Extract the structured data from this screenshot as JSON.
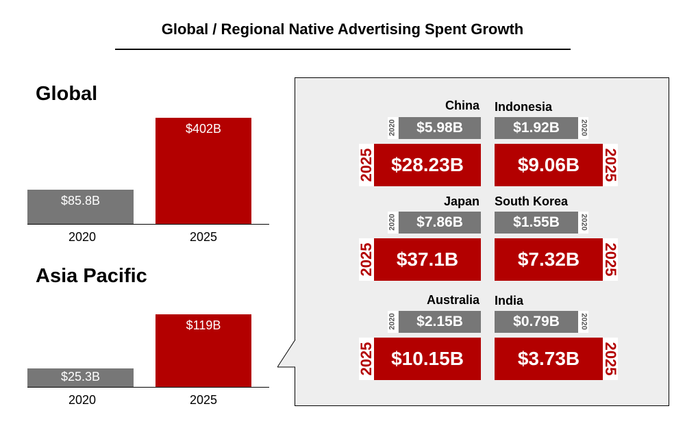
{
  "title": "Global / Regional Native Advertising Spent Growth",
  "colors": {
    "bar_2020": "#777777",
    "bar_2025": "#b30000",
    "panel_bg": "#eeeeee"
  },
  "chart_data": [
    {
      "type": "bar",
      "title": "Global",
      "categories": [
        "2020",
        "2025"
      ],
      "values": [
        85.8,
        402
      ],
      "value_labels": [
        "$85.8B",
        "$402B"
      ],
      "unit": "$B",
      "grid": false
    },
    {
      "type": "bar",
      "title": "Asia Pacific",
      "categories": [
        "2020",
        "2025"
      ],
      "values": [
        25.3,
        119
      ],
      "value_labels": [
        "$25.3B",
        "$119B"
      ],
      "unit": "$B",
      "grid": false
    },
    {
      "type": "table",
      "title": "Asia Pacific countries",
      "year_labels": {
        "from": "2020",
        "to": "2025"
      },
      "countries": [
        {
          "name": "China",
          "v2020": 5.98,
          "v2025": 28.23,
          "label2020": "$5.98B",
          "label2025": "$28.23B"
        },
        {
          "name": "Indonesia",
          "v2020": 1.92,
          "v2025": 9.06,
          "label2020": "$1.92B",
          "label2025": "$9.06B"
        },
        {
          "name": "Japan",
          "v2020": 7.86,
          "v2025": 37.1,
          "label2020": "$7.86B",
          "label2025": "$37.1B"
        },
        {
          "name": "South Korea",
          "v2020": 1.55,
          "v2025": 7.32,
          "label2020": "$1.55B",
          "label2025": "$7.32B"
        },
        {
          "name": "Australia",
          "v2020": 2.15,
          "v2025": 10.15,
          "label2020": "$2.15B",
          "label2025": "$10.15B"
        },
        {
          "name": "India",
          "v2020": 0.79,
          "v2025": 3.73,
          "label2020": "$0.79B",
          "label2025": "$3.73B"
        }
      ]
    }
  ]
}
